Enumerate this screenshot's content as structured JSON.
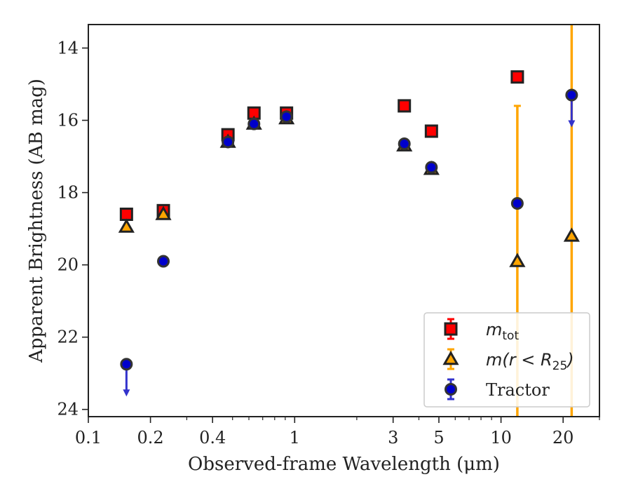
{
  "chart_data": {
    "type": "scatter",
    "xlabel": "Observed-frame Wavelength (μm)",
    "ylabel": "Apparent Brightness (AB mag)",
    "xscale": "log",
    "xlim": [
      0.1,
      30
    ],
    "ylim": [
      24.2,
      13.35
    ],
    "y_inverted": true,
    "x_ticks": [
      0.1,
      0.2,
      0.4,
      1,
      3,
      5,
      10,
      20
    ],
    "x_tick_labels": [
      "0.1",
      "0.2",
      "0.4",
      "1",
      "3",
      "5",
      "10",
      "20"
    ],
    "y_ticks": [
      14,
      16,
      18,
      20,
      22,
      24
    ],
    "y_tick_labels": [
      "14",
      "16",
      "18",
      "20",
      "22",
      "24"
    ],
    "grid": false,
    "legend_position": "lower-right",
    "series": [
      {
        "name": "m_tot",
        "legend_label": {
          "base": "m",
          "sub": "tot"
        },
        "marker": "square",
        "face_color": "#ff0000",
        "edge_color": "#222222",
        "points": [
          {
            "x": 0.153,
            "y": 18.6
          },
          {
            "x": 0.231,
            "y": 18.5
          },
          {
            "x": 0.475,
            "y": 16.4
          },
          {
            "x": 0.635,
            "y": 15.8
          },
          {
            "x": 0.913,
            "y": 15.8
          },
          {
            "x": 3.4,
            "y": 15.6
          },
          {
            "x": 4.6,
            "y": 16.3
          },
          {
            "x": 12.0,
            "y": 14.8
          }
        ]
      },
      {
        "name": "m(r < R25)",
        "legend_label": {
          "base": "m(r < R",
          "sub": "25",
          "tail": ")"
        },
        "marker": "triangle",
        "face_color": "#ffa500",
        "edge_color": "#222222",
        "err_color": "#ffa500",
        "points": [
          {
            "x": 0.153,
            "y": 18.95
          },
          {
            "x": 0.231,
            "y": 18.6
          },
          {
            "x": 0.475,
            "y": 16.6
          },
          {
            "x": 0.635,
            "y": 16.1
          },
          {
            "x": 0.913,
            "y": 15.95
          },
          {
            "x": 3.4,
            "y": 16.7
          },
          {
            "x": 4.6,
            "y": 17.35
          },
          {
            "x": 12.0,
            "y": 19.9,
            "err_low": 15.6,
            "err_high": 24.2
          },
          {
            "x": 22.0,
            "y": 19.2,
            "err_low": 13.35,
            "err_high": 24.2
          }
        ]
      },
      {
        "name": "Tractor",
        "legend_label": {
          "base": "Tractor"
        },
        "marker": "circle",
        "face_color": "#0000cc",
        "edge_color": "#333333",
        "err_color": "#3333cc",
        "points": [
          {
            "x": 0.153,
            "y": 22.75,
            "upper_limit": true
          },
          {
            "x": 0.231,
            "y": 19.9
          },
          {
            "x": 0.475,
            "y": 16.6
          },
          {
            "x": 0.635,
            "y": 16.1
          },
          {
            "x": 0.913,
            "y": 15.9
          },
          {
            "x": 3.4,
            "y": 16.65
          },
          {
            "x": 4.6,
            "y": 17.3
          },
          {
            "x": 12.0,
            "y": 18.3
          },
          {
            "x": 22.0,
            "y": 15.3,
            "upper_limit": true
          }
        ]
      }
    ]
  }
}
